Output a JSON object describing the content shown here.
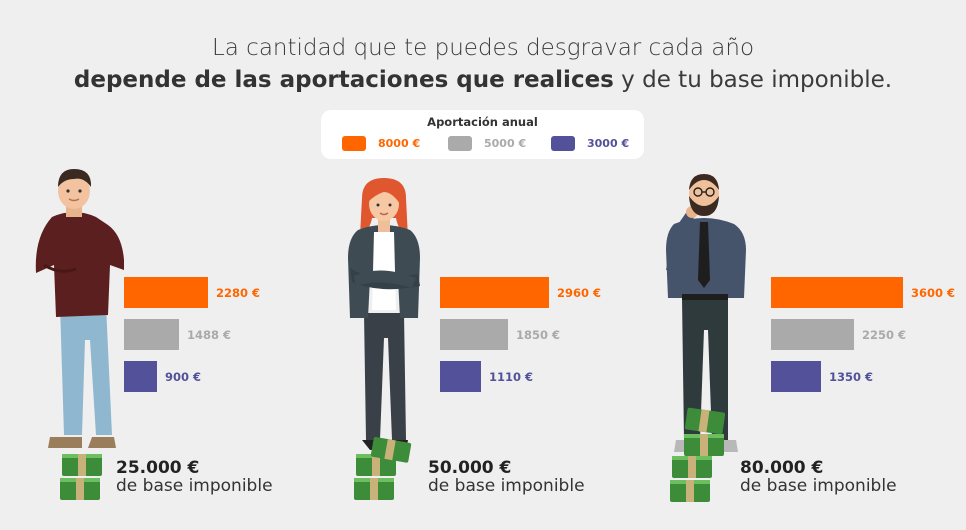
{
  "title": {
    "line1": "La cantidad que te puedes desgravar cada año",
    "line2_bold": "depende de las aportaciones que realices",
    "line2_rest": " y de tu base imponible."
  },
  "legend": {
    "title": "Aportación anual",
    "items": [
      {
        "label": "8000 €",
        "color": "#ff6600"
      },
      {
        "label": "5000 €",
        "color": "#aaaaaa"
      },
      {
        "label": "3000 €",
        "color": "#525199"
      }
    ]
  },
  "chart_data": [
    {
      "type": "bar",
      "orientation": "horizontal",
      "group_label": "25.000 €",
      "group_sublabel": "de base imponible",
      "series": [
        {
          "name": "8000 €",
          "value": 2280,
          "label": "2280 €",
          "color": "#ff6600"
        },
        {
          "name": "5000 €",
          "value": 1488,
          "label": "1488 €",
          "color": "#aaaaaa"
        },
        {
          "name": "3000 €",
          "value": 900,
          "label": "900 €",
          "color": "#525199"
        }
      ]
    },
    {
      "type": "bar",
      "orientation": "horizontal",
      "group_label": "50.000 €",
      "group_sublabel": "de base imponible",
      "series": [
        {
          "name": "8000 €",
          "value": 2960,
          "label": "2960 €",
          "color": "#ff6600"
        },
        {
          "name": "5000 €",
          "value": 1850,
          "label": "1850 €",
          "color": "#aaaaaa"
        },
        {
          "name": "3000 €",
          "value": 1110,
          "label": "1110 €",
          "color": "#525199"
        }
      ]
    },
    {
      "type": "bar",
      "orientation": "horizontal",
      "group_label": "80.000 €",
      "group_sublabel": "de base imponible",
      "series": [
        {
          "name": "8000 €",
          "value": 3600,
          "label": "3600 €",
          "color": "#ff6600"
        },
        {
          "name": "5000 €",
          "value": 2250,
          "label": "2250 €",
          "color": "#aaaaaa"
        },
        {
          "name": "3000 €",
          "value": 1350,
          "label": "1350 €",
          "color": "#525199"
        }
      ]
    }
  ],
  "icons": {
    "person_1": "man-sweater-icon",
    "person_2": "woman-blazer-icon",
    "person_3": "bearded-man-tie-icon",
    "money": "money-stack-icon"
  }
}
